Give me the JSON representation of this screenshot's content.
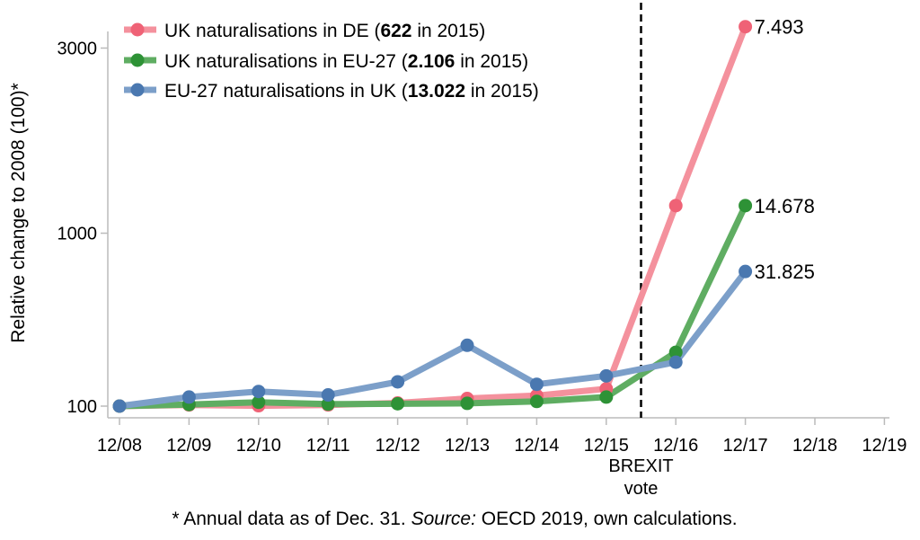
{
  "chart_data": {
    "type": "line",
    "ylabel": "Relative change to 2008 (100)*",
    "y_ticks": [
      100,
      1000,
      3000
    ],
    "y_scale": "sqrt",
    "ylim": [
      100,
      3400
    ],
    "categories": [
      "12/08",
      "12/09",
      "12/10",
      "12/11",
      "12/12",
      "12/13",
      "12/14",
      "12/15",
      "12/16",
      "12/17",
      "12/18",
      "12/19"
    ],
    "series": [
      {
        "name_parts": [
          "UK naturalisations in DE (",
          "622",
          " in 2015)"
        ],
        "color": "#f4919d",
        "marker_color": "#ef6276",
        "values": [
          100,
          103,
          101,
          103,
          108,
          120,
          128,
          148,
          1230,
          3300,
          null,
          null
        ],
        "end_label": "7.493"
      },
      {
        "name_parts": [
          "UK naturalisations in EU-27 (",
          "2.106",
          " in 2015)"
        ],
        "color": "#5fad62",
        "marker_color": "#2e9236",
        "values": [
          100,
          104,
          110,
          105,
          106,
          107,
          112,
          124,
          280,
          1230,
          null,
          null
        ],
        "end_label": "14.678"
      },
      {
        "name_parts": [
          "EU-27 naturalisations in UK (",
          "13.022",
          " in 2015)"
        ],
        "color": "#7c9fc9",
        "marker_color": "#4a78b0",
        "values": [
          100,
          124,
          140,
          130,
          170,
          310,
          162,
          190,
          240,
          720,
          null,
          null
        ],
        "end_label": "31.825"
      }
    ],
    "annotation": {
      "line1": "BREXIT",
      "line2": "vote",
      "x_position": "12/15-12/16 (mid-2016)"
    },
    "grid": false,
    "legend_position": "top-left"
  },
  "footnote": {
    "prefix": "* Annual data as of Dec. 31. ",
    "italic": "Source:",
    "suffix": " OECD 2019, own calculations."
  }
}
